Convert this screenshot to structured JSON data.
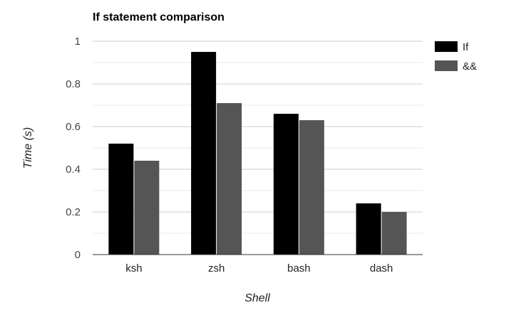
{
  "chart_data": {
    "type": "bar",
    "title": "If statement comparison",
    "xlabel": "Shell",
    "ylabel": "Time (s)",
    "categories": [
      "ksh",
      "zsh",
      "bash",
      "dash"
    ],
    "series": [
      {
        "name": "If",
        "values": [
          0.52,
          0.95,
          0.66,
          0.24
        ],
        "color": "#000000"
      },
      {
        "name": "&&",
        "values": [
          0.44,
          0.71,
          0.63,
          0.2
        ],
        "color": "#555555"
      }
    ],
    "ylim": [
      0,
      1
    ],
    "yticks": [
      0,
      0.2,
      0.4,
      0.6,
      0.8,
      1
    ],
    "ytick_labels": [
      "0",
      "0.2",
      "0.4",
      "0.6",
      "0.8",
      "1"
    ],
    "minor_gridlines": true,
    "grid": true,
    "legend_position": "right"
  }
}
